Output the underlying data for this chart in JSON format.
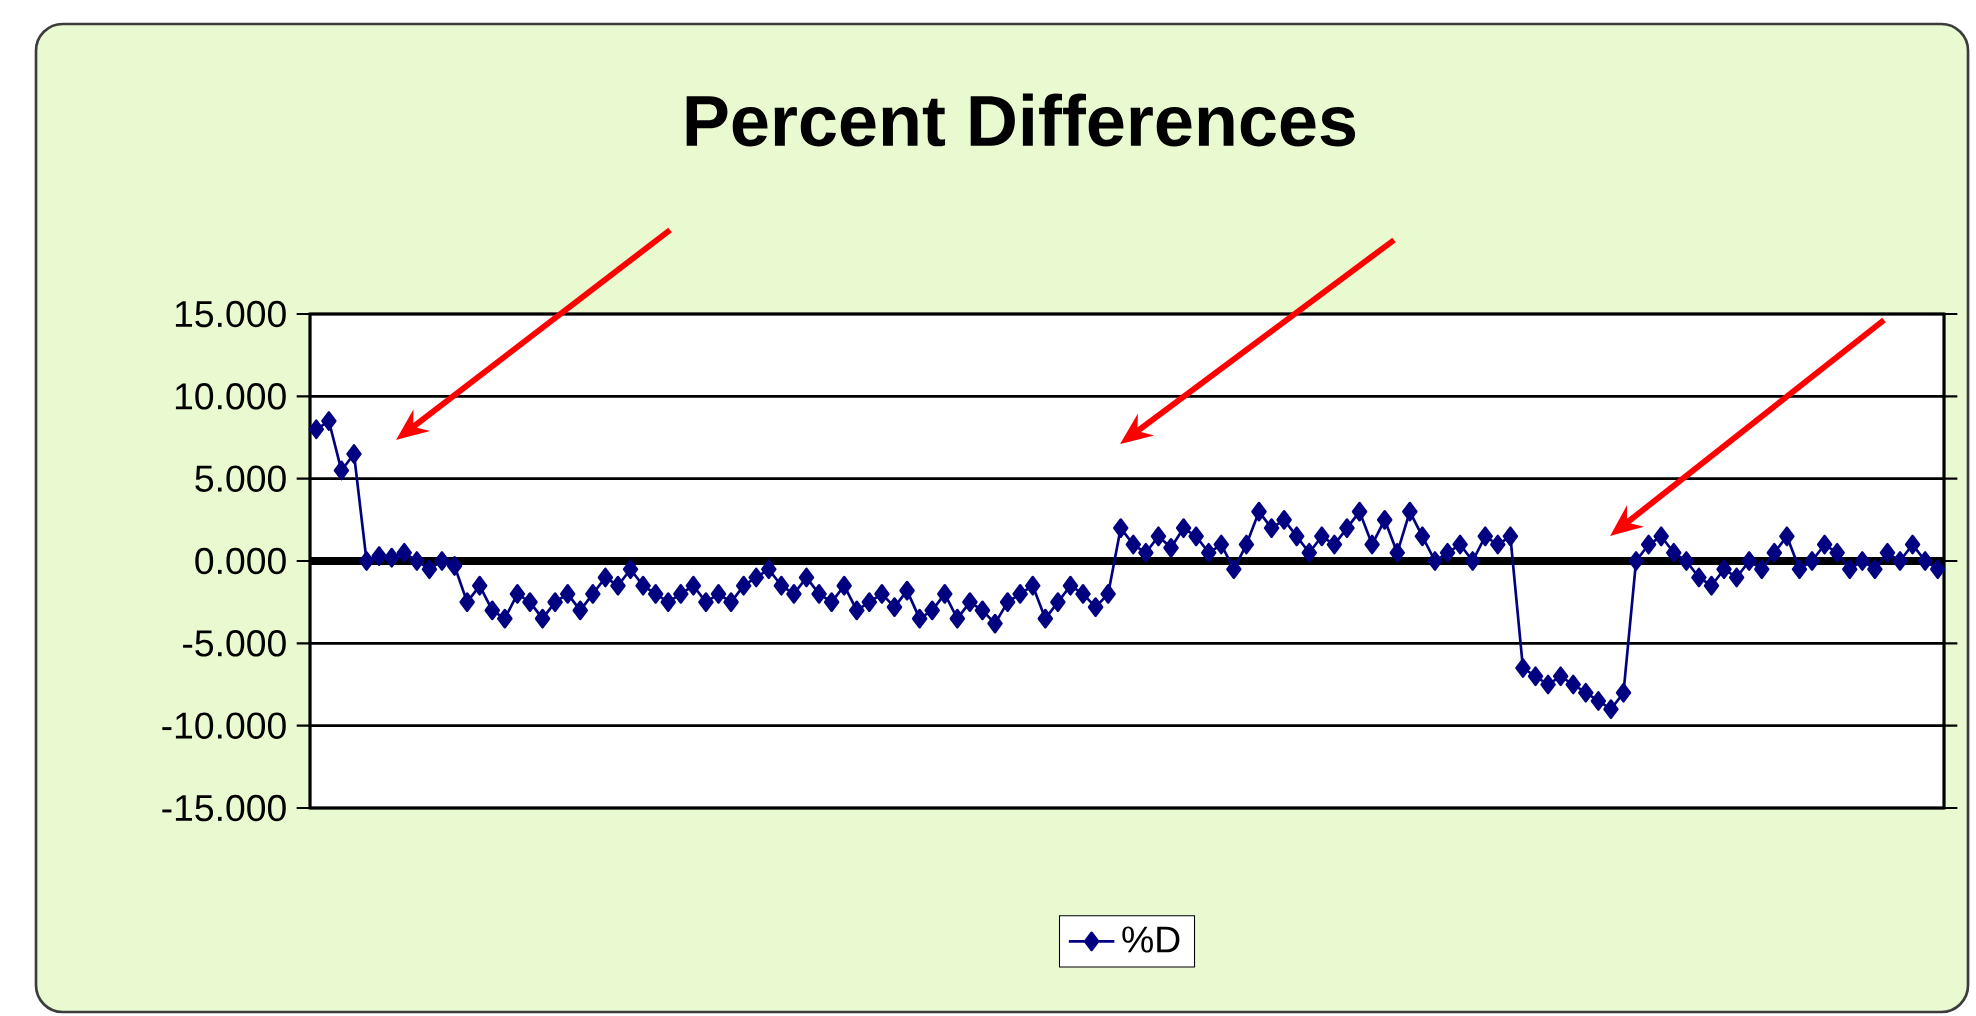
{
  "chart_data": {
    "type": "line",
    "title": "Percent Differences",
    "categories": [
      null,
      null,
      null,
      null,
      null,
      null,
      null,
      null,
      null,
      null,
      null,
      null,
      null,
      null,
      null,
      null,
      null,
      null,
      null,
      null,
      null,
      null,
      null,
      null,
      null,
      null,
      null,
      null,
      null,
      null,
      null,
      null,
      null,
      null,
      null,
      null,
      null,
      null,
      null,
      null,
      null,
      null,
      null,
      null,
      null,
      null,
      null,
      null,
      null,
      null,
      null,
      null,
      null,
      null,
      null,
      null,
      null,
      null,
      null,
      null,
      null,
      null,
      null,
      null,
      null,
      null,
      null,
      null,
      null,
      null,
      null,
      null,
      null,
      null,
      null,
      null,
      null,
      null,
      null,
      null,
      null,
      null,
      null,
      null,
      null,
      null,
      null,
      null,
      null,
      null,
      null,
      null,
      null,
      null,
      null,
      null,
      null,
      null,
      null,
      null,
      null,
      null,
      null,
      null,
      null,
      null,
      null,
      null,
      null,
      null,
      null,
      null,
      null,
      null,
      null,
      null,
      null,
      null,
      null,
      null,
      null,
      null,
      null,
      null,
      null,
      null,
      null,
      null,
      null,
      null
    ],
    "series": [
      {
        "name": "%D",
        "color": "#000080",
        "values": [
          8.0,
          8.5,
          5.5,
          6.5,
          0.0,
          0.3,
          0.2,
          0.5,
          0.0,
          -0.5,
          0.0,
          -0.3,
          -2.5,
          -1.5,
          -3.0,
          -3.5,
          -2.0,
          -2.5,
          -3.5,
          -2.5,
          -2.0,
          -3.0,
          -2.0,
          -1.0,
          -1.5,
          -0.5,
          -1.5,
          -2.0,
          -2.5,
          -2.0,
          -1.5,
          -2.5,
          -2.0,
          -2.5,
          -1.5,
          -1.0,
          -0.5,
          -1.5,
          -2.0,
          -1.0,
          -2.0,
          -2.5,
          -1.5,
          -3.0,
          -2.5,
          -2.0,
          -2.8,
          -1.8,
          -3.5,
          -3.0,
          -2.0,
          -3.5,
          -2.5,
          -3.0,
          -3.8,
          -2.5,
          -2.0,
          -1.5,
          -3.5,
          -2.5,
          -1.5,
          -2.0,
          -2.8,
          -2.0,
          2.0,
          1.0,
          0.5,
          1.5,
          0.8,
          2.0,
          1.5,
          0.5,
          1.0,
          -0.5,
          1.0,
          3.0,
          2.0,
          2.5,
          1.5,
          0.5,
          1.5,
          1.0,
          2.0,
          3.0,
          1.0,
          2.5,
          0.5,
          3.0,
          1.5,
          0.0,
          0.5,
          1.0,
          0.0,
          1.5,
          1.0,
          1.5,
          -6.5,
          -7.0,
          -7.5,
          -7.0,
          -7.5,
          -8.0,
          -8.5,
          -9.0,
          -8.0,
          0.0,
          1.0,
          1.5,
          0.5,
          0.0,
          -1.0,
          -1.5,
          -0.5,
          -1.0,
          0.0,
          -0.5,
          0.5,
          1.5,
          -0.5,
          0.0,
          1.0,
          0.5,
          -0.5,
          0.0,
          -0.5,
          0.5,
          0.0,
          1.0,
          0.0,
          -0.5
        ]
      }
    ],
    "ylim": [
      -15,
      15
    ],
    "yticks": [
      {
        "value": -15,
        "label": "-15.000"
      },
      {
        "value": -10,
        "label": "-10.000"
      },
      {
        "value": -5,
        "label": "-5.000"
      },
      {
        "value": 0,
        "label": "0.000"
      },
      {
        "value": 5,
        "label": "5.000"
      },
      {
        "value": 10,
        "label": "10.000"
      },
      {
        "value": 15,
        "label": "15.000"
      }
    ],
    "grid": "y",
    "legend": "bottom",
    "marker": "diamond",
    "line_style": "solid"
  }
}
